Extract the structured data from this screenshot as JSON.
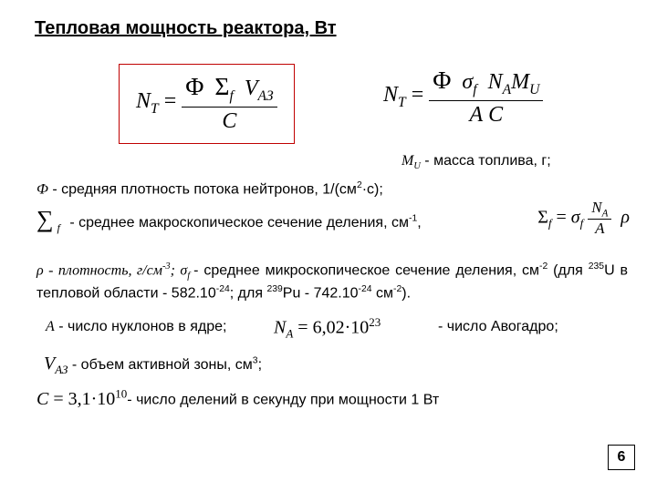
{
  "title": "Тепловая мощность реактора, Вт",
  "mu_label_pre": "M",
  "mu_label_sub": "U",
  "mu_label_post": " - масса топлива, г;",
  "phi_line_pre": "Ф",
  "phi_line_post": " - средняя плотность потока нейтронов, 1/(см",
  "phi_sup": "2",
  "phi_tail": "·с);",
  "sigma_label": " - среднее макроскопическое сечение деления, см",
  "sigma_sup": "-1",
  "sigma_comma": ",",
  "rho_para_a": "ρ - ",
  "rho_para_b": "плотность, г/см",
  "rho_sup3": "-3",
  "rho_para_c": "; σ",
  "rho_para_csf": "f ",
  "rho_para_d": "- среднее микроскопическое сечение деления, см",
  "rho_sup2": "-2",
  "rho_tail1": " (для ",
  "u235_sup": "235",
  "u235_txt": "U в тепловой области - 582.10",
  "exp24a": "-24",
  "mid": ";  для ",
  "pu_sup": "239",
  "pu_txt": "Pu - 742.10",
  "exp24b": "-24",
  "cm2end": " см",
  "cm2sup": "-2",
  "endparen": ").",
  "a_line_pre": "A",
  "a_line_post": " - число нуклонов в ядре;",
  "na_label": "  - число Авогадро;",
  "v_label": "  - объем активной зоны, см",
  "v_sup": "3",
  "v_tail": ";",
  "c_label": "- число делений в секунду при мощности 1 Вт",
  "page": "6",
  "eq1_NT": "N",
  "eq1_T": "T",
  "eq1_phi": "Φ",
  "eq1_Sigma": "Σ",
  "eq1_f": "f",
  "eq1_V": "V",
  "eq1_AZ": "АЗ",
  "eq1_C": "C",
  "eq2_sigma": "σ",
  "eq2_NA": "N",
  "eq2_Asub": "A",
  "eq2_M": "M",
  "eq2_U": "U",
  "eq2_Aden": "A",
  "sigmaf_eq_A": "A",
  "sigmaf_eq_rho": "ρ",
  "na_value_a": "N",
  "na_value_Asub": "A",
  "na_value_eq": " = 6,02·10",
  "na_value_exp": "23",
  "vaz_V": "V",
  "vaz_AZ": "АЗ",
  "c_sym": "C",
  "c_val": " = 3,1·10",
  "c_exp": "10"
}
